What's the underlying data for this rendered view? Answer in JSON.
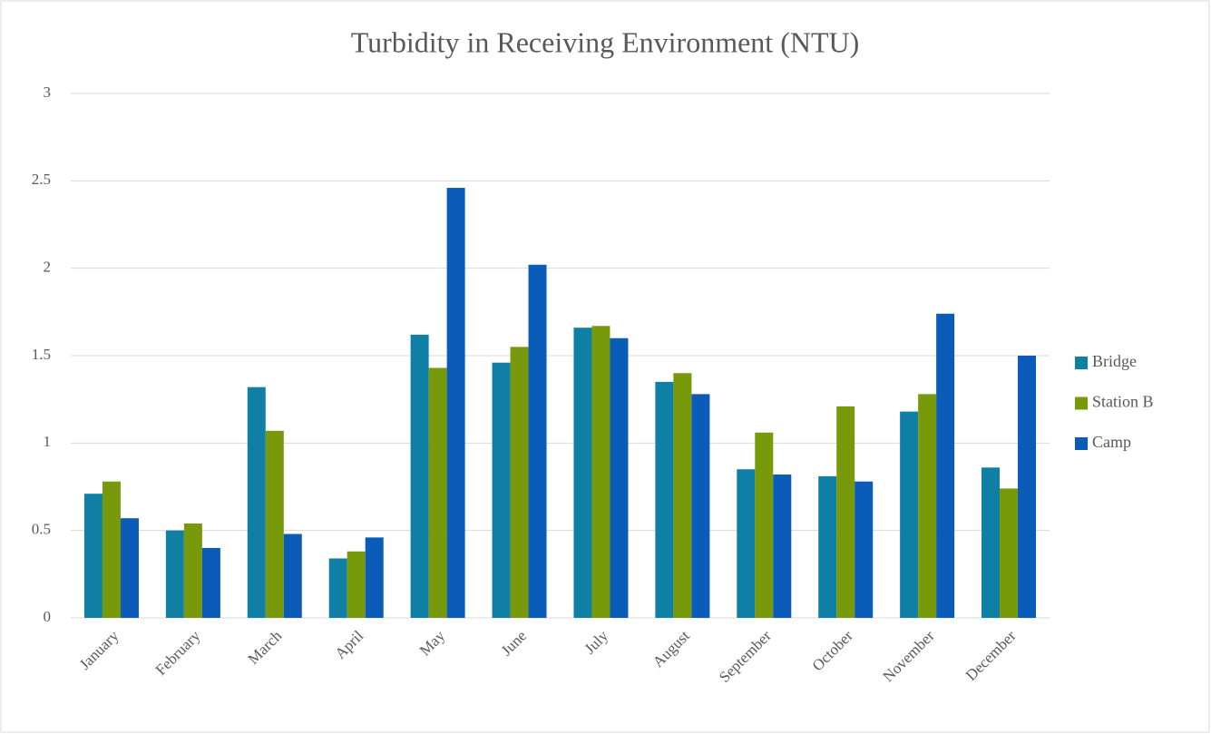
{
  "chart_data": {
    "type": "bar",
    "title": "Turbidity in Receiving Environment (NTU)",
    "categories": [
      "January",
      "February",
      "March",
      "April",
      "May",
      "June",
      "July",
      "August",
      "September",
      "October",
      "November",
      "December"
    ],
    "series": [
      {
        "name": "Bridge",
        "color": "#0f7fa6",
        "values": [
          0.71,
          0.5,
          1.32,
          0.34,
          1.62,
          1.46,
          1.66,
          1.35,
          0.85,
          0.81,
          1.18,
          0.86
        ]
      },
      {
        "name": "Station B",
        "color": "#77990a",
        "values": [
          0.78,
          0.54,
          1.07,
          0.38,
          1.43,
          1.55,
          1.67,
          1.4,
          1.06,
          1.21,
          1.28,
          0.74
        ]
      },
      {
        "name": "Camp",
        "color": "#0b5cb8",
        "values": [
          0.57,
          0.4,
          0.48,
          0.46,
          2.46,
          2.02,
          1.6,
          1.28,
          0.82,
          0.78,
          1.74,
          1.5
        ]
      }
    ],
    "ylim": [
      0,
      3
    ],
    "yticks": [
      0,
      0.5,
      1,
      1.5,
      2,
      2.5,
      3
    ],
    "grid": true,
    "legend": "right"
  }
}
